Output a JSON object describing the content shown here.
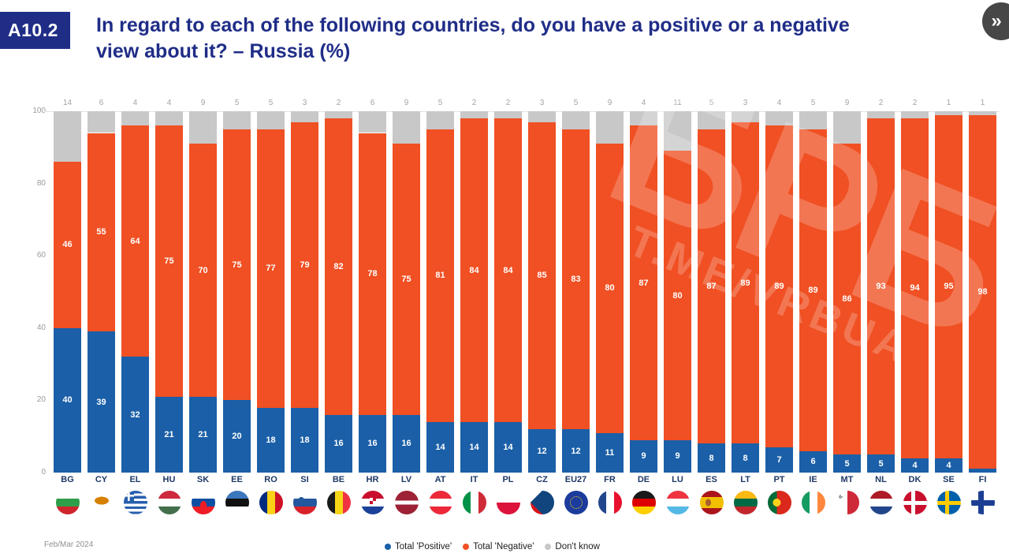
{
  "header": {
    "badge": "A10.2",
    "title_line1": "In regard to each of the following countries, do you have a positive or a negative",
    "title_line2": "view about it? – Russia (%)",
    "expand_icon": "»"
  },
  "watermark": {
    "line1": "БРБ",
    "line2": "Т.МЕ/VRBUA"
  },
  "footer": {
    "date_label": "Feb/Mar 2024"
  },
  "colors": {
    "accent_navy": "#1f2d87",
    "positive_blue": "#1a5fa8",
    "negative_orange": "#f05023",
    "dontknow_gray": "#c8c8c8"
  },
  "legend": [
    {
      "label": "Total 'Positive'",
      "color": "#1a5fa8"
    },
    {
      "label": "Total 'Negative'",
      "color": "#f05023"
    },
    {
      "label": "Don't know",
      "color": "#c8c8c8"
    }
  ],
  "flag_icons": [
    "bulgaria-flag-icon",
    "cyprus-flag-icon",
    "greece-flag-icon",
    "hungary-flag-icon",
    "slovakia-flag-icon",
    "estonia-flag-icon",
    "romania-flag-icon",
    "slovenia-flag-icon",
    "belgium-flag-icon",
    "croatia-flag-icon",
    "latvia-flag-icon",
    "austria-flag-icon",
    "italy-flag-icon",
    "poland-flag-icon",
    "czechia-flag-icon",
    "european-union-flag-icon",
    "france-flag-icon",
    "germany-flag-icon",
    "luxembourg-flag-icon",
    "spain-flag-icon",
    "lithuania-flag-icon",
    "portugal-flag-icon",
    "ireland-flag-icon",
    "malta-flag-icon",
    "netherlands-flag-icon",
    "denmark-flag-icon",
    "sweden-flag-icon",
    "finland-flag-icon"
  ],
  "chart_data": {
    "type": "bar",
    "stacked": true,
    "title": "In regard to each of the following countries, do you have a positive or a negative view about it? – Russia (%)",
    "categories": [
      "BG",
      "CY",
      "EL",
      "HU",
      "SK",
      "EE",
      "RO",
      "SI",
      "BE",
      "HR",
      "LV",
      "AT",
      "IT",
      "PL",
      "CZ",
      "EU27",
      "FR",
      "DE",
      "LU",
      "ES",
      "LT",
      "PT",
      "IE",
      "MT",
      "NL",
      "DK",
      "SE",
      "FI"
    ],
    "series": [
      {
        "name": "Total 'Positive'",
        "color": "#1a5fa8",
        "values": [
          40,
          39,
          32,
          21,
          21,
          20,
          18,
          18,
          16,
          16,
          16,
          14,
          14,
          14,
          12,
          12,
          11,
          9,
          9,
          8,
          8,
          7,
          6,
          5,
          5,
          4,
          4,
          1
        ]
      },
      {
        "name": "Total 'Negative'",
        "color": "#f05023",
        "values": [
          46,
          55,
          64,
          75,
          70,
          75,
          77,
          79,
          82,
          78,
          75,
          81,
          84,
          84,
          85,
          83,
          80,
          87,
          80,
          87,
          89,
          89,
          89,
          86,
          93,
          94,
          95,
          98
        ]
      },
      {
        "name": "Don't know",
        "color": "#c8c8c8",
        "values": [
          14,
          6,
          4,
          4,
          9,
          5,
          5,
          3,
          2,
          6,
          9,
          5,
          2,
          2,
          3,
          5,
          9,
          4,
          11,
          5,
          3,
          4,
          5,
          9,
          2,
          2,
          1,
          1
        ]
      }
    ],
    "ylim": [
      0,
      100
    ],
    "yticks": [
      100,
      80,
      60,
      40,
      20,
      0
    ],
    "grid": false,
    "legend_position": "bottom"
  }
}
